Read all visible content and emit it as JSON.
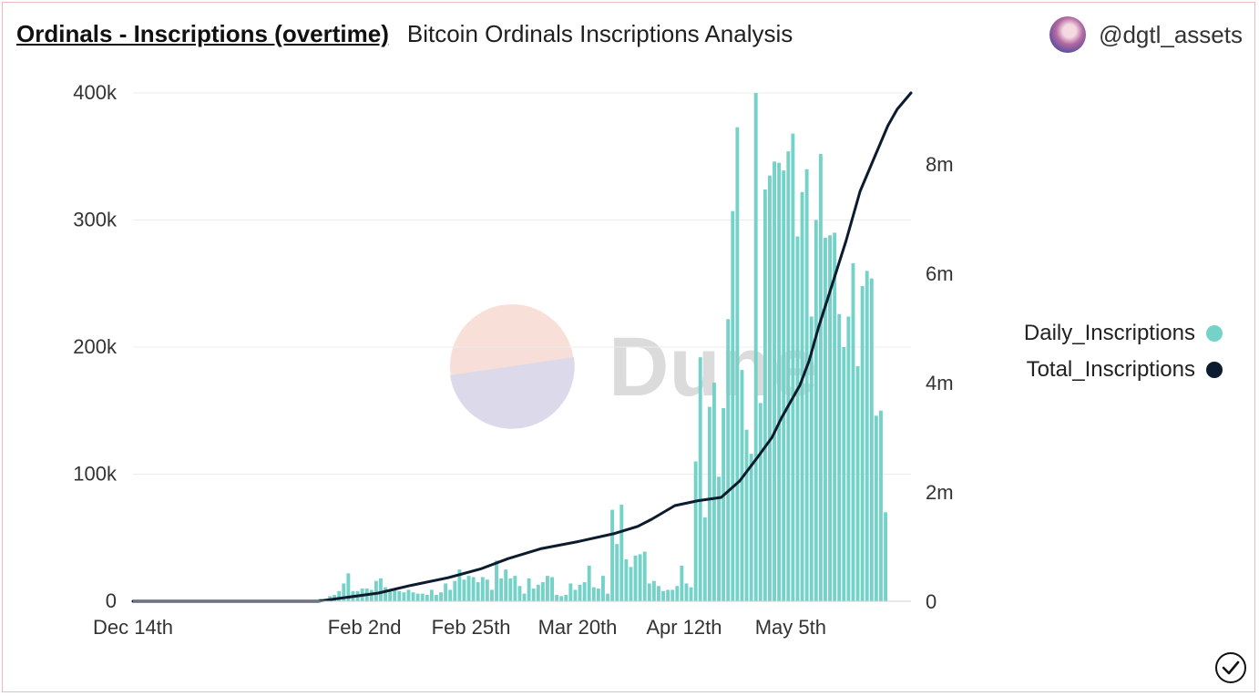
{
  "header": {
    "title": "Ordinals - Inscriptions (overtime)",
    "subtitle": "Bitcoin Ordinals Inscriptions Analysis"
  },
  "author": {
    "name": "@dgtl_assets"
  },
  "watermark": {
    "text": "Dune"
  },
  "colors": {
    "bar": "#74d2c8",
    "line": "#0c1b2e",
    "grid": "#ececec"
  },
  "chart_data": {
    "type": "bar",
    "x_tick_labels": [
      "Dec 14th",
      "Feb 2nd",
      "Feb 25th",
      "Mar 20th",
      "Apr 12th",
      "May 5th"
    ],
    "x_tick_dates": [
      "2022-12-14",
      "2023-02-02",
      "2023-02-25",
      "2023-03-20",
      "2023-04-12",
      "2023-05-05"
    ],
    "x_range": [
      "2022-12-14",
      "2023-05-31"
    ],
    "y_left_ticks": [
      "0",
      "100k",
      "200k",
      "300k",
      "400k"
    ],
    "y_left_range": [
      0,
      400000
    ],
    "y_right_ticks": [
      "0",
      "2m",
      "4m",
      "6m",
      "8m"
    ],
    "y_right_range": [
      0,
      9300000
    ],
    "grid": true,
    "legend_placement": "right",
    "series": [
      {
        "name": "Daily_Inscriptions",
        "axis": "left",
        "type": "bar",
        "start_date": "2023-01-23",
        "values": [
          2000,
          2000,
          4000,
          5000,
          8000,
          14000,
          22000,
          8000,
          8000,
          10000,
          10000,
          9000,
          16000,
          18000,
          11000,
          8000,
          10000,
          8000,
          7000,
          9000,
          7000,
          6000,
          6000,
          5000,
          9000,
          5000,
          7000,
          14000,
          9000,
          16000,
          25000,
          17000,
          20000,
          19000,
          15000,
          19000,
          17000,
          9000,
          32000,
          18000,
          25000,
          18000,
          20000,
          12000,
          6000,
          18000,
          10000,
          13000,
          15000,
          20000,
          19000,
          5000,
          4000,
          5000,
          14000,
          9000,
          13000,
          15000,
          28000,
          11000,
          10000,
          20000,
          6000,
          72000,
          45000,
          76000,
          33000,
          27000,
          36000,
          37000,
          39000,
          14000,
          16000,
          12000,
          8000,
          9000,
          9000,
          12000,
          28000,
          14000,
          11000,
          110000,
          192000,
          66000,
          153000,
          172000,
          98000,
          152000,
          222000,
          307000,
          373000,
          182000,
          135000,
          116000,
          400000,
          156000,
          324000,
          335000,
          346000,
          345000,
          339000,
          354000,
          368000,
          287000,
          322000,
          340000,
          224000,
          300000,
          352000,
          286000,
          288000,
          290000,
          226000,
          200000,
          224000,
          266000,
          185000,
          248000,
          260000,
          254000,
          146000,
          150000,
          70000
        ]
      },
      {
        "name": "Total_Inscriptions",
        "axis": "right",
        "type": "line",
        "points": [
          [
            "2022-12-14",
            0
          ],
          [
            "2023-01-23",
            0
          ],
          [
            "2023-02-05",
            150000
          ],
          [
            "2023-02-12",
            290000
          ],
          [
            "2023-02-20",
            430000
          ],
          [
            "2023-02-27",
            590000
          ],
          [
            "2023-03-05",
            780000
          ],
          [
            "2023-03-12",
            960000
          ],
          [
            "2023-03-20",
            1090000
          ],
          [
            "2023-03-28",
            1240000
          ],
          [
            "2023-04-02",
            1370000
          ],
          [
            "2023-04-05",
            1500000
          ],
          [
            "2023-04-10",
            1750000
          ],
          [
            "2023-04-15",
            1840000
          ],
          [
            "2023-04-20",
            1900000
          ],
          [
            "2023-04-24",
            2200000
          ],
          [
            "2023-04-28",
            2650000
          ],
          [
            "2023-05-01",
            3000000
          ],
          [
            "2023-05-03",
            3350000
          ],
          [
            "2023-05-05",
            3650000
          ],
          [
            "2023-05-07",
            3950000
          ],
          [
            "2023-05-09",
            4400000
          ],
          [
            "2023-05-11",
            5000000
          ],
          [
            "2023-05-14",
            5800000
          ],
          [
            "2023-05-17",
            6600000
          ],
          [
            "2023-05-20",
            7500000
          ],
          [
            "2023-05-23",
            8100000
          ],
          [
            "2023-05-26",
            8700000
          ],
          [
            "2023-05-28",
            9000000
          ],
          [
            "2023-05-31",
            9300000
          ]
        ]
      }
    ]
  }
}
